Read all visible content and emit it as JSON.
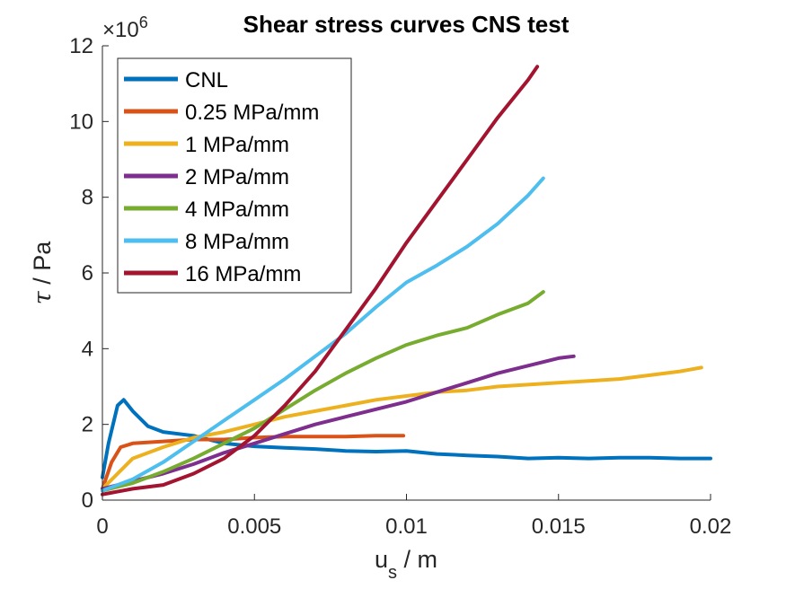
{
  "chart_data": {
    "type": "line",
    "title": "Shear stress curves CNS test",
    "xlabel": {
      "main": "u",
      "sub": "s",
      "rest": " / m"
    },
    "ylabel": {
      "symbol": "τ",
      "rest": " / Pa"
    },
    "y_exponent": {
      "prefix": "×10",
      "power": "6"
    },
    "xlim": [
      0,
      0.02
    ],
    "ylim": [
      0,
      12
    ],
    "xticks": [
      0,
      0.005,
      0.01,
      0.015,
      0.02
    ],
    "xtick_labels": [
      "0",
      "0.005",
      "0.01",
      "0.015",
      "0.02"
    ],
    "yticks": [
      0,
      2,
      4,
      6,
      8,
      10,
      12
    ],
    "ytick_labels": [
      "0",
      "2",
      "4",
      "6",
      "8",
      "10",
      "12"
    ],
    "grid": false,
    "legend_position": "top-left",
    "series": [
      {
        "name": "CNL",
        "color": "#0072BD",
        "points": [
          [
            0,
            0.6
          ],
          [
            0.0002,
            1.5
          ],
          [
            0.0005,
            2.5
          ],
          [
            0.0007,
            2.65
          ],
          [
            0.001,
            2.35
          ],
          [
            0.0015,
            1.95
          ],
          [
            0.002,
            1.8
          ],
          [
            0.003,
            1.7
          ],
          [
            0.004,
            1.5
          ],
          [
            0.005,
            1.42
          ],
          [
            0.006,
            1.38
          ],
          [
            0.007,
            1.35
          ],
          [
            0.008,
            1.3
          ],
          [
            0.009,
            1.28
          ],
          [
            0.01,
            1.3
          ],
          [
            0.011,
            1.22
          ],
          [
            0.012,
            1.18
          ],
          [
            0.013,
            1.15
          ],
          [
            0.014,
            1.1
          ],
          [
            0.015,
            1.12
          ],
          [
            0.016,
            1.1
          ],
          [
            0.017,
            1.12
          ],
          [
            0.018,
            1.12
          ],
          [
            0.019,
            1.1
          ],
          [
            0.02,
            1.1
          ]
        ]
      },
      {
        "name": "0.25 MPa/mm",
        "color": "#D95319",
        "points": [
          [
            0,
            0.3
          ],
          [
            0.0003,
            1.0
          ],
          [
            0.0006,
            1.4
          ],
          [
            0.001,
            1.5
          ],
          [
            0.002,
            1.55
          ],
          [
            0.003,
            1.6
          ],
          [
            0.004,
            1.6
          ],
          [
            0.005,
            1.65
          ],
          [
            0.006,
            1.68
          ],
          [
            0.007,
            1.68
          ],
          [
            0.008,
            1.68
          ],
          [
            0.009,
            1.7
          ],
          [
            0.0099,
            1.7
          ]
        ]
      },
      {
        "name": "1 MPa/mm",
        "color": "#EDB120",
        "points": [
          [
            0,
            0.3
          ],
          [
            0.0005,
            0.7
          ],
          [
            0.001,
            1.1
          ],
          [
            0.002,
            1.4
          ],
          [
            0.003,
            1.65
          ],
          [
            0.004,
            1.8
          ],
          [
            0.005,
            2.0
          ],
          [
            0.006,
            2.2
          ],
          [
            0.007,
            2.35
          ],
          [
            0.008,
            2.5
          ],
          [
            0.009,
            2.65
          ],
          [
            0.01,
            2.75
          ],
          [
            0.011,
            2.85
          ],
          [
            0.012,
            2.9
          ],
          [
            0.013,
            3.0
          ],
          [
            0.014,
            3.05
          ],
          [
            0.015,
            3.1
          ],
          [
            0.016,
            3.15
          ],
          [
            0.017,
            3.2
          ],
          [
            0.018,
            3.3
          ],
          [
            0.019,
            3.4
          ],
          [
            0.0197,
            3.5
          ]
        ]
      },
      {
        "name": "2 MPa/mm",
        "color": "#7E2F8E",
        "points": [
          [
            0,
            0.3
          ],
          [
            0.001,
            0.5
          ],
          [
            0.002,
            0.7
          ],
          [
            0.003,
            0.95
          ],
          [
            0.004,
            1.25
          ],
          [
            0.005,
            1.5
          ],
          [
            0.006,
            1.75
          ],
          [
            0.007,
            2.0
          ],
          [
            0.008,
            2.2
          ],
          [
            0.009,
            2.4
          ],
          [
            0.01,
            2.6
          ],
          [
            0.011,
            2.85
          ],
          [
            0.012,
            3.1
          ],
          [
            0.013,
            3.35
          ],
          [
            0.014,
            3.55
          ],
          [
            0.015,
            3.75
          ],
          [
            0.0155,
            3.8
          ]
        ]
      },
      {
        "name": "4 MPa/mm",
        "color": "#77AC30",
        "points": [
          [
            0,
            0.25
          ],
          [
            0.001,
            0.45
          ],
          [
            0.002,
            0.75
          ],
          [
            0.003,
            1.1
          ],
          [
            0.004,
            1.5
          ],
          [
            0.005,
            1.9
          ],
          [
            0.006,
            2.4
          ],
          [
            0.007,
            2.9
          ],
          [
            0.008,
            3.35
          ],
          [
            0.009,
            3.75
          ],
          [
            0.01,
            4.1
          ],
          [
            0.011,
            4.35
          ],
          [
            0.012,
            4.55
          ],
          [
            0.013,
            4.9
          ],
          [
            0.014,
            5.2
          ],
          [
            0.0145,
            5.5
          ]
        ]
      },
      {
        "name": "8 MPa/mm",
        "color": "#4DBEEE",
        "points": [
          [
            0,
            0.25
          ],
          [
            0.001,
            0.55
          ],
          [
            0.002,
            1.0
          ],
          [
            0.003,
            1.55
          ],
          [
            0.004,
            2.1
          ],
          [
            0.005,
            2.65
          ],
          [
            0.006,
            3.2
          ],
          [
            0.007,
            3.8
          ],
          [
            0.008,
            4.4
          ],
          [
            0.009,
            5.1
          ],
          [
            0.01,
            5.75
          ],
          [
            0.011,
            6.2
          ],
          [
            0.012,
            6.7
          ],
          [
            0.013,
            7.3
          ],
          [
            0.014,
            8.05
          ],
          [
            0.0145,
            8.5
          ]
        ]
      },
      {
        "name": "16 MPa/mm",
        "color": "#A2142F",
        "points": [
          [
            0,
            0.15
          ],
          [
            0.001,
            0.3
          ],
          [
            0.002,
            0.4
          ],
          [
            0.003,
            0.7
          ],
          [
            0.004,
            1.1
          ],
          [
            0.005,
            1.7
          ],
          [
            0.006,
            2.5
          ],
          [
            0.007,
            3.4
          ],
          [
            0.008,
            4.5
          ],
          [
            0.009,
            5.6
          ],
          [
            0.01,
            6.8
          ],
          [
            0.011,
            7.9
          ],
          [
            0.012,
            9.0
          ],
          [
            0.013,
            10.1
          ],
          [
            0.014,
            11.1
          ],
          [
            0.0143,
            11.45
          ]
        ]
      }
    ]
  }
}
